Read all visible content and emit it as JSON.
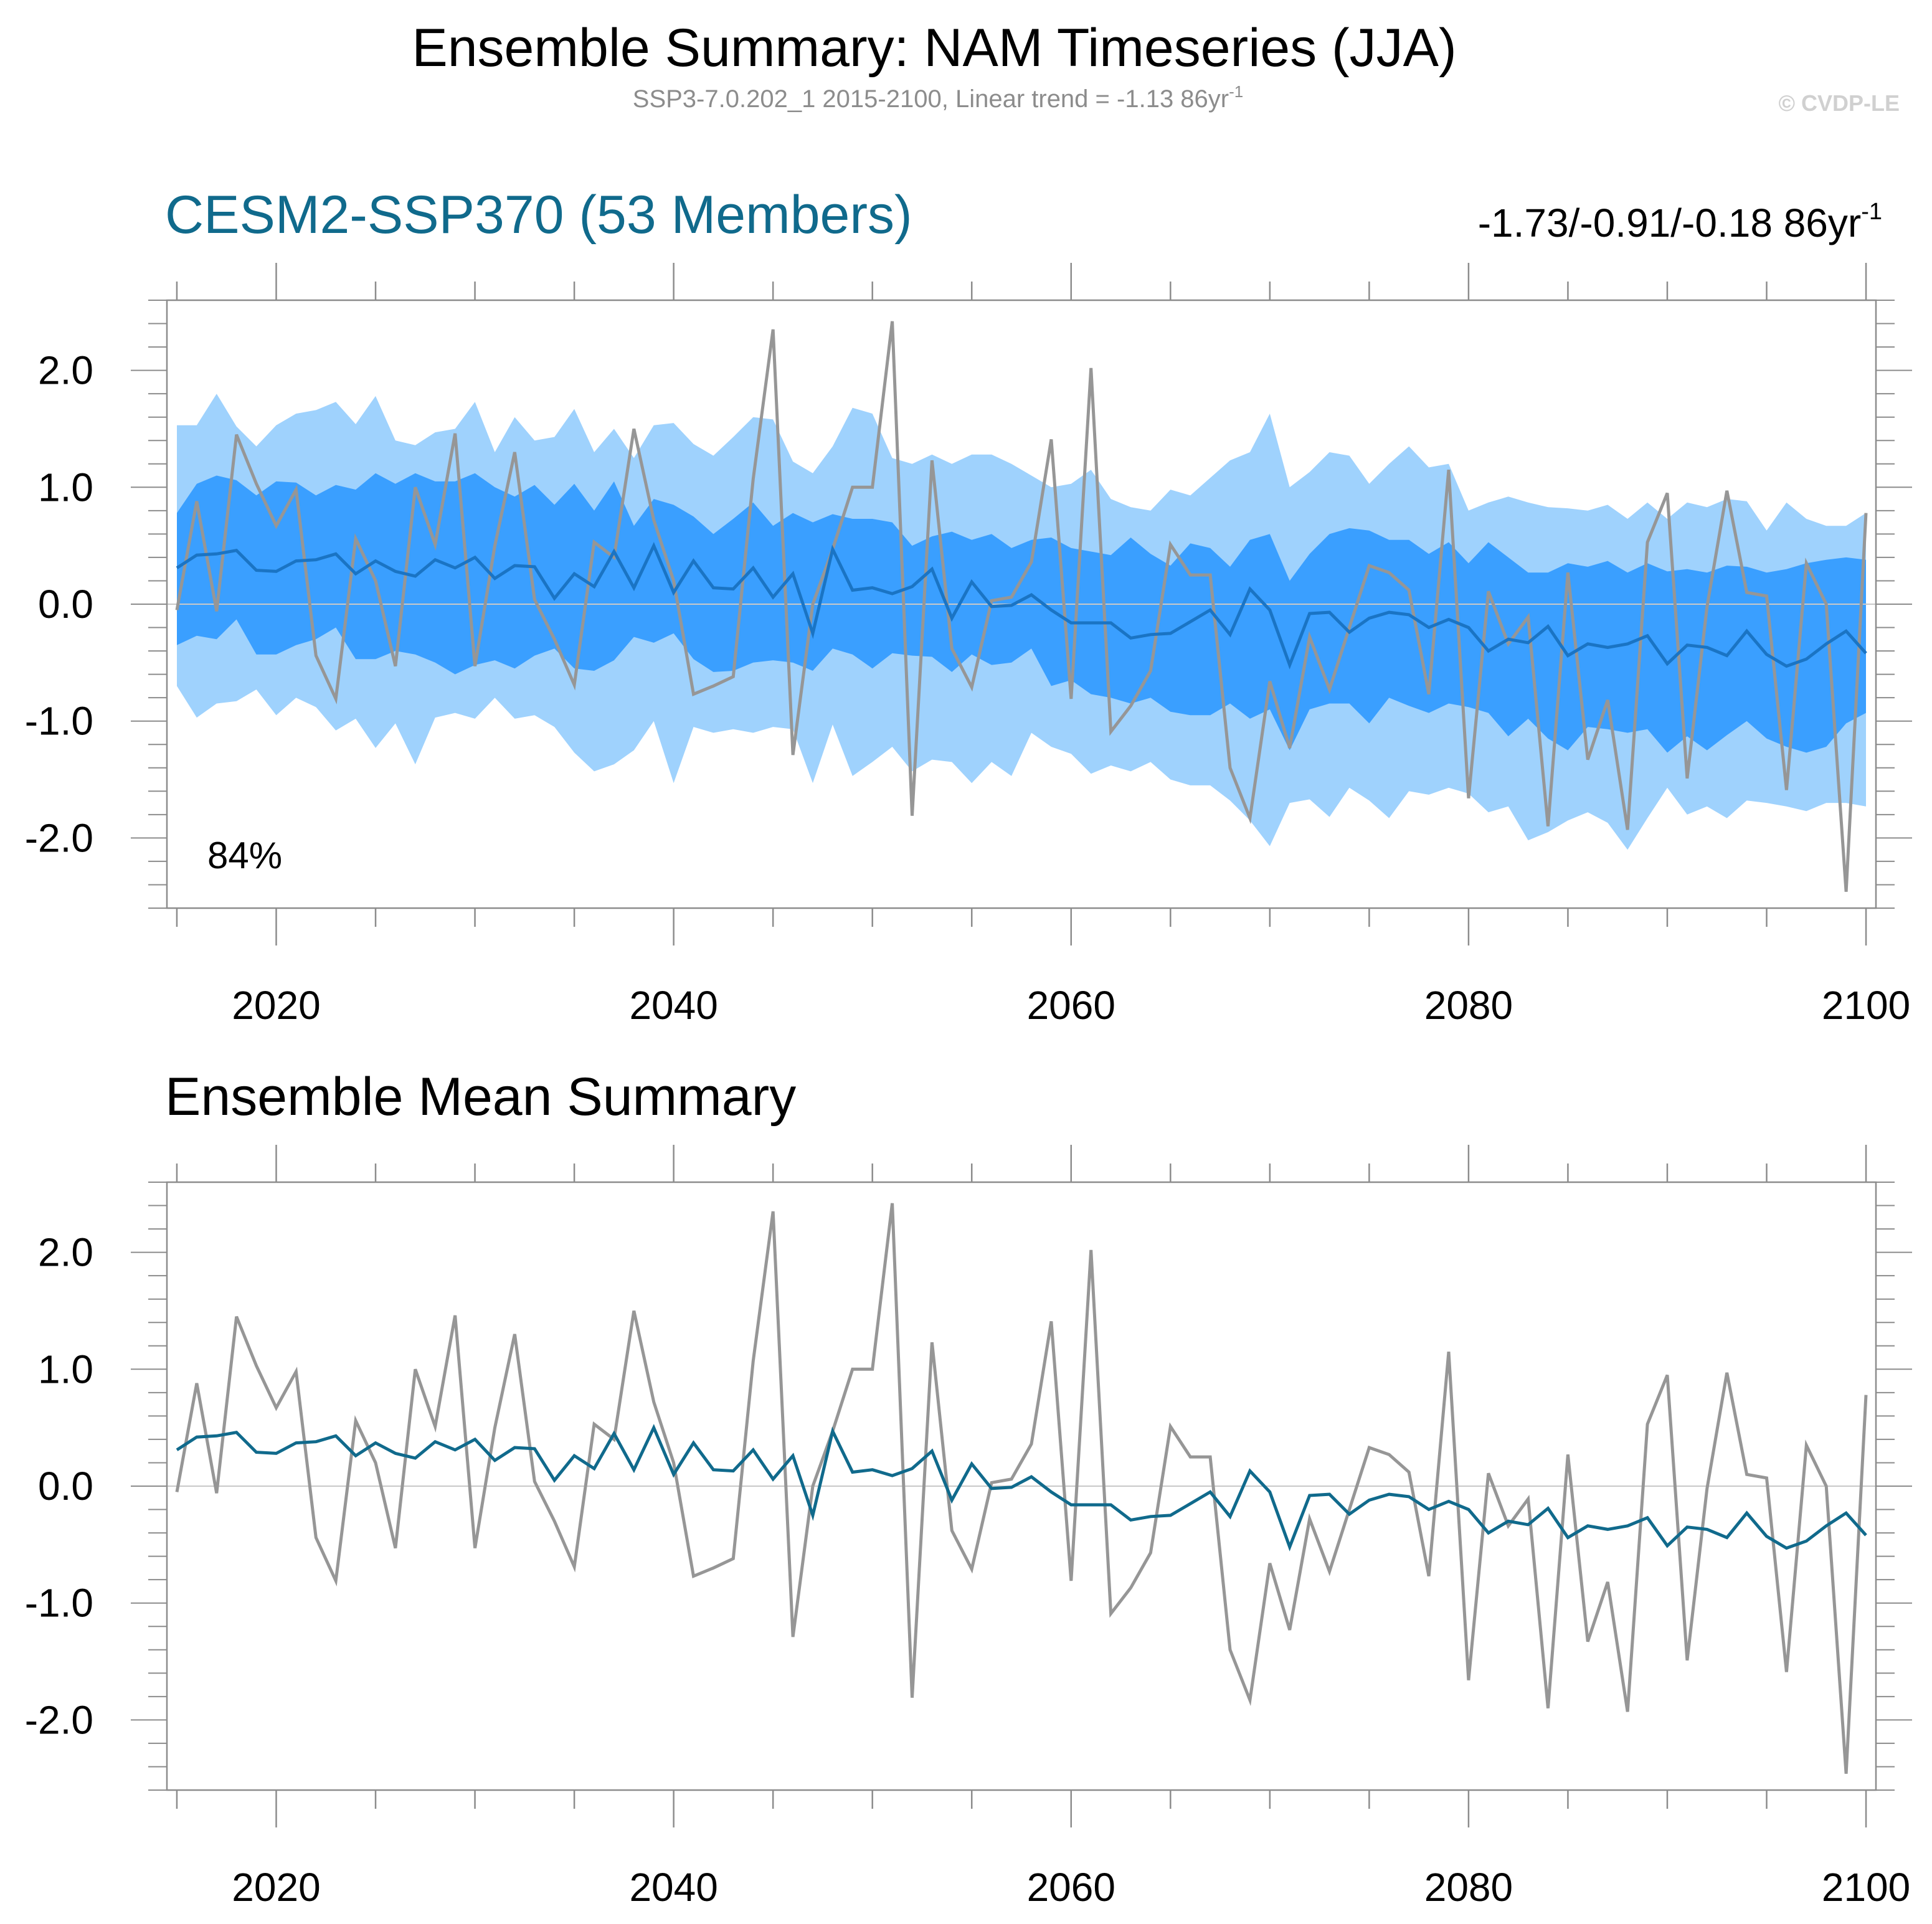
{
  "title": "Ensemble Summary: NAM Timeseries (JJA)",
  "subtitle": "SSP3-7.0.202_1 2015-2100, Linear trend = -1.13 86yr",
  "subtitle_sup": "-1",
  "copyright": "© CVDP-LE",
  "colors": {
    "outer_band": "#9fd2fd",
    "inner_band": "#3a9fff",
    "ens_mean_top": "#1a74c4",
    "ens_mean_bottom": "#106a8c",
    "obs": "#969696",
    "axis": "#8c8c8c",
    "title_accent": "#106a8c"
  },
  "chart_data": [
    {
      "type": "area",
      "panel": "top",
      "title": "CESM2-SSP370 (53 Members)",
      "trend_range": "-1.73/-0.91/-0.18 86yr",
      "trend_sup": "-1",
      "percent_label": "84%",
      "xlim": [
        2014.5,
        2100.5
      ],
      "ylim": [
        -2.6,
        2.6
      ],
      "xticks": [
        2020,
        2040,
        2060,
        2080,
        2100
      ],
      "xtick_labels": [
        "2020",
        "2040",
        "2060",
        "2080",
        "2100"
      ],
      "yticks": [
        2.0,
        1.0,
        0.0,
        -1.0,
        -2.0
      ],
      "ytick_labels": [
        "2.0",
        "1.0",
        "0.0",
        "-1.0",
        "-2.0"
      ],
      "series": [
        "outer_band",
        "inner_band",
        "ensemble_mean",
        "observations"
      ]
    },
    {
      "type": "line",
      "panel": "bottom",
      "title": "Ensemble Mean Summary",
      "xlim": [
        2014.5,
        2100.5
      ],
      "ylim": [
        -2.6,
        2.6
      ],
      "xticks": [
        2020,
        2040,
        2060,
        2080,
        2100
      ],
      "xtick_labels": [
        "2020",
        "2040",
        "2060",
        "2080",
        "2100"
      ],
      "yticks": [
        2.0,
        1.0,
        0.0,
        -1.0,
        -2.0
      ],
      "ytick_labels": [
        "2.0",
        "1.0",
        "0.0",
        "-1.0",
        "-2.0"
      ],
      "series": [
        "ensemble_mean",
        "observations"
      ]
    }
  ],
  "series_data": {
    "start_year": 2015,
    "observations": [
      -0.05,
      0.88,
      -0.06,
      1.45,
      1.03,
      0.67,
      0.98,
      -0.44,
      -0.81,
      0.56,
      0.2,
      -0.53,
      1.0,
      0.51,
      1.46,
      -0.53,
      0.5,
      1.3,
      0.04,
      -0.3,
      -0.69,
      0.53,
      0.4,
      1.5,
      0.72,
      0.2,
      -0.77,
      -0.7,
      -0.62,
      1.07,
      2.35,
      -1.29,
      0.0,
      0.47,
      1.0,
      1.0,
      2.42,
      -1.81,
      1.23,
      -0.38,
      -0.71,
      0.03,
      0.06,
      0.36,
      1.41,
      -0.81,
      2.02,
      -1.09,
      -0.87,
      -0.57,
      0.51,
      0.25,
      0.25,
      -1.4,
      -1.83,
      -0.66,
      -1.23,
      -0.28,
      -0.73,
      -0.2,
      0.33,
      0.27,
      0.12,
      -0.77,
      1.15,
      -1.66,
      0.11,
      -0.34,
      -0.11,
      -1.9,
      0.27,
      -1.33,
      -0.82,
      -1.93,
      0.53,
      0.95,
      -1.49,
      -0.02,
      0.97,
      0.1,
      0.07,
      -1.59,
      0.35,
      0.0,
      -2.46,
      0.78
    ],
    "ensemble_mean": [
      0.31,
      0.42,
      0.43,
      0.46,
      0.29,
      0.28,
      0.37,
      0.38,
      0.43,
      0.26,
      0.37,
      0.28,
      0.24,
      0.38,
      0.31,
      0.4,
      0.22,
      0.33,
      0.32,
      0.05,
      0.26,
      0.15,
      0.45,
      0.14,
      0.5,
      0.1,
      0.37,
      0.14,
      0.13,
      0.31,
      0.06,
      0.26,
      -0.25,
      0.47,
      0.12,
      0.14,
      0.09,
      0.15,
      0.3,
      -0.12,
      0.19,
      -0.02,
      -0.01,
      0.08,
      -0.05,
      -0.16,
      -0.16,
      -0.16,
      -0.29,
      -0.26,
      -0.25,
      -0.15,
      -0.05,
      -0.26,
      0.13,
      -0.05,
      -0.52,
      -0.08,
      -0.07,
      -0.24,
      -0.12,
      -0.07,
      -0.09,
      -0.2,
      -0.13,
      -0.2,
      -0.4,
      -0.3,
      -0.33,
      -0.19,
      -0.44,
      -0.34,
      -0.37,
      -0.34,
      -0.27,
      -0.51,
      -0.35,
      -0.37,
      -0.44,
      -0.23,
      -0.43,
      -0.53,
      -0.47,
      -0.34,
      -0.23,
      -0.42
    ],
    "inner_upper": [
      0.78,
      1.03,
      1.1,
      1.06,
      0.93,
      1.05,
      1.04,
      0.93,
      1.02,
      0.98,
      1.12,
      1.03,
      1.12,
      1.05,
      1.05,
      1.12,
      1.0,
      0.92,
      1.02,
      0.85,
      1.03,
      0.8,
      1.05,
      0.67,
      0.9,
      0.85,
      0.75,
      0.6,
      0.73,
      0.87,
      0.67,
      0.78,
      0.7,
      0.77,
      0.73,
      0.73,
      0.7,
      0.5,
      0.58,
      0.62,
      0.55,
      0.6,
      0.48,
      0.55,
      0.57,
      0.48,
      0.45,
      0.42,
      0.57,
      0.43,
      0.33,
      0.52,
      0.48,
      0.32,
      0.55,
      0.6,
      0.2,
      0.43,
      0.6,
      0.65,
      0.63,
      0.55,
      0.55,
      0.43,
      0.53,
      0.35,
      0.53,
      0.4,
      0.27,
      0.27,
      0.35,
      0.32,
      0.37,
      0.27,
      0.35,
      0.28,
      0.3,
      0.27,
      0.33,
      0.32,
      0.27,
      0.3,
      0.35,
      0.38,
      0.4,
      0.38
    ],
    "inner_lower": [
      -0.35,
      -0.27,
      -0.3,
      -0.13,
      -0.43,
      -0.43,
      -0.35,
      -0.3,
      -0.2,
      -0.47,
      -0.47,
      -0.4,
      -0.43,
      -0.5,
      -0.6,
      -0.52,
      -0.48,
      -0.55,
      -0.44,
      -0.38,
      -0.55,
      -0.57,
      -0.48,
      -0.28,
      -0.33,
      -0.25,
      -0.47,
      -0.58,
      -0.57,
      -0.5,
      -0.48,
      -0.5,
      -0.57,
      -0.38,
      -0.43,
      -0.55,
      -0.42,
      -0.44,
      -0.45,
      -0.58,
      -0.43,
      -0.52,
      -0.5,
      -0.38,
      -0.7,
      -0.65,
      -0.77,
      -0.8,
      -0.85,
      -0.8,
      -0.92,
      -0.95,
      -0.95,
      -0.85,
      -0.98,
      -0.9,
      -1.25,
      -0.9,
      -0.85,
      -0.85,
      -1.02,
      -0.8,
      -0.87,
      -0.93,
      -0.85,
      -0.88,
      -0.93,
      -1.13,
      -0.98,
      -1.15,
      -1.25,
      -1.05,
      -1.07,
      -1.1,
      -1.07,
      -1.27,
      -1.13,
      -1.25,
      -1.12,
      -1.0,
      -1.15,
      -1.22,
      -1.27,
      -1.22,
      -1.02,
      -0.93
    ],
    "outer_upper": [
      1.53,
      1.53,
      1.8,
      1.52,
      1.35,
      1.53,
      1.63,
      1.66,
      1.73,
      1.54,
      1.78,
      1.4,
      1.36,
      1.47,
      1.5,
      1.73,
      1.3,
      1.6,
      1.4,
      1.43,
      1.67,
      1.3,
      1.5,
      1.25,
      1.53,
      1.55,
      1.37,
      1.27,
      1.43,
      1.6,
      1.58,
      1.22,
      1.12,
      1.35,
      1.68,
      1.63,
      1.25,
      1.2,
      1.28,
      1.2,
      1.28,
      1.28,
      1.2,
      1.1,
      1.0,
      1.03,
      1.15,
      0.9,
      0.83,
      0.8,
      0.98,
      0.93,
      1.08,
      1.23,
      1.3,
      1.63,
      1.0,
      1.13,
      1.3,
      1.27,
      1.03,
      1.2,
      1.35,
      1.17,
      1.2,
      0.8,
      0.87,
      0.92,
      0.87,
      0.83,
      0.82,
      0.8,
      0.85,
      0.73,
      0.87,
      0.73,
      0.87,
      0.83,
      0.9,
      0.88,
      0.63,
      0.87,
      0.73,
      0.67,
      0.67,
      0.78
    ],
    "outer_lower": [
      -0.7,
      -0.97,
      -0.85,
      -0.83,
      -0.73,
      -0.95,
      -0.8,
      -0.88,
      -1.08,
      -0.98,
      -1.23,
      -1.02,
      -1.37,
      -0.97,
      -0.93,
      -0.98,
      -0.8,
      -0.98,
      -0.95,
      -1.05,
      -1.27,
      -1.43,
      -1.37,
      -1.25,
      -1.0,
      -1.53,
      -1.05,
      -1.1,
      -1.07,
      -1.1,
      -1.05,
      -1.07,
      -1.53,
      -1.03,
      -1.47,
      -1.35,
      -1.22,
      -1.43,
      -1.33,
      -1.35,
      -1.53,
      -1.35,
      -1.47,
      -1.1,
      -1.22,
      -1.28,
      -1.45,
      -1.38,
      -1.43,
      -1.35,
      -1.5,
      -1.55,
      -1.55,
      -1.68,
      -1.85,
      -2.07,
      -1.7,
      -1.67,
      -1.82,
      -1.57,
      -1.68,
      -1.83,
      -1.6,
      -1.63,
      -1.57,
      -1.62,
      -1.78,
      -1.73,
      -2.02,
      -1.95,
      -1.85,
      -1.78,
      -1.87,
      -2.1,
      -1.83,
      -1.57,
      -1.8,
      -1.73,
      -1.83,
      -1.68,
      -1.7,
      -1.73,
      -1.77,
      -1.7,
      -1.7,
      -1.73
    ]
  }
}
